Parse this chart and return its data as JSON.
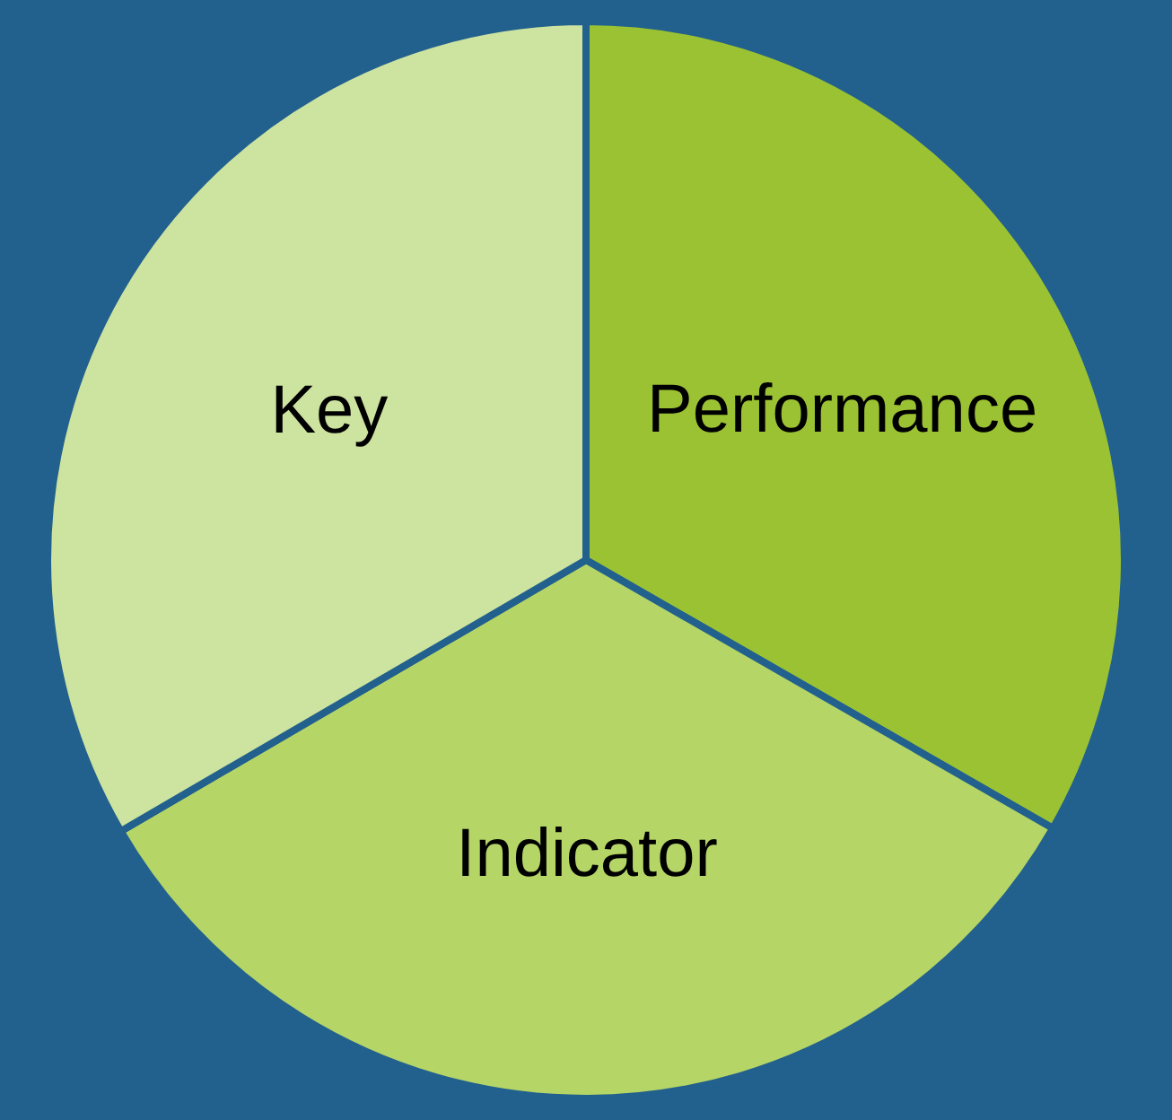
{
  "chart_data": {
    "type": "pie",
    "categories": [
      "Performance",
      "Indicator",
      "Key"
    ],
    "values": [
      33.3,
      33.3,
      33.4
    ],
    "colors": [
      "#9bc232",
      "#b5d566",
      "#cde3a0"
    ]
  }
}
